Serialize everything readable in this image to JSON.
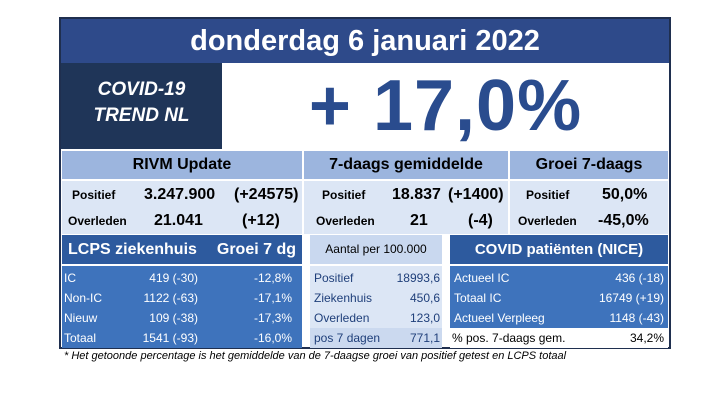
{
  "header": {
    "date": "donderdag 6 januari 2022"
  },
  "trend": {
    "line1": "COVID-19",
    "line2": "TREND NL",
    "percentage": "+ 17,0%"
  },
  "rivm": {
    "title": "RIVM Update",
    "positief_label": "Positief",
    "positief_value": "3.247.900",
    "positief_delta": "(+24575)",
    "overleden_label": "Overleden",
    "overleden_value": "21.041",
    "overleden_delta": "(+12)"
  },
  "avg7": {
    "title": "7-daags gemiddelde",
    "positief_label": "Positief",
    "positief_value": "18.837",
    "positief_delta": "(+1400)",
    "overleden_label": "Overleden",
    "overleden_value": "21",
    "overleden_delta": "(-4)"
  },
  "growth": {
    "title": "Groei 7-daags",
    "positief_label": "Positief",
    "positief_value": "50,0%",
    "overleden_label": "Overleden",
    "overleden_value": "-45,0%"
  },
  "lcps": {
    "title": "LCPS ziekenhuis",
    "growth_title": "Groei 7 dg",
    "rows": [
      {
        "label": "IC",
        "value": "419 (-30)",
        "growth": "-12,8%"
      },
      {
        "label": "Non-IC",
        "value": "1122 (-63)",
        "growth": "-17,1%"
      },
      {
        "label": "Nieuw",
        "value": "109 (-38)",
        "growth": "-17,3%"
      },
      {
        "label": "Totaal",
        "value": "1541 (-93)",
        "growth": "-16,0%"
      }
    ]
  },
  "per100k": {
    "title": "Aantal per 100.000",
    "rows": [
      {
        "label": "Positief",
        "value": "18993,6"
      },
      {
        "label": "Ziekenhuis",
        "value": "450,6"
      },
      {
        "label": "Overleden",
        "value": "123,0"
      },
      {
        "label": "pos 7 dagen",
        "value": "771,1"
      }
    ]
  },
  "nice": {
    "title": "COVID patiënten (NICE)",
    "rows": [
      {
        "label": "Actueel IC",
        "value": "436 (-18)"
      },
      {
        "label": "Totaal IC",
        "value": "16749 (+19)"
      },
      {
        "label": "Actueel Verpleeg",
        "value": "1148 (-43)"
      },
      {
        "label": "% pos. 7-daags gem.",
        "value": "34,2%"
      }
    ]
  },
  "footnote": "* Het getoonde percentage is het gemiddelde van de 7-daagse groei van positief getest en LCPS totaal"
}
